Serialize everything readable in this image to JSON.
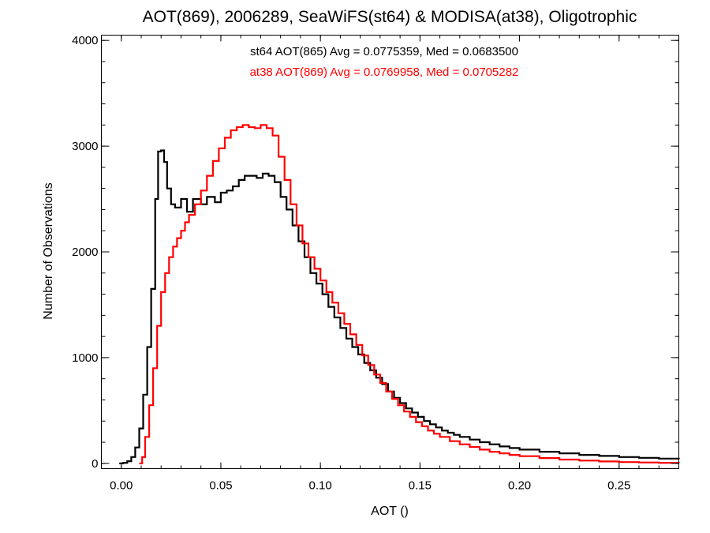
{
  "chart_data": {
    "type": "line",
    "title": "AOT(869), 2006289, SeaWiFS(st64) & MODISA(at38), Oligotrophic",
    "xlabel": "AOT ()",
    "ylabel": "Number of Observations",
    "xlim": [
      -0.01,
      0.28
    ],
    "ylim": [
      -50,
      4050
    ],
    "xticks": [
      {
        "value": 0.0,
        "label": "0.00"
      },
      {
        "value": 0.05,
        "label": "0.05"
      },
      {
        "value": 0.1,
        "label": "0.10"
      },
      {
        "value": 0.15,
        "label": "0.15"
      },
      {
        "value": 0.2,
        "label": "0.20"
      },
      {
        "value": 0.25,
        "label": "0.25"
      }
    ],
    "yticks": [
      {
        "value": 0,
        "label": "0"
      },
      {
        "value": 1000,
        "label": "1000"
      },
      {
        "value": 2000,
        "label": "2000"
      },
      {
        "value": 3000,
        "label": "3000"
      },
      {
        "value": 4000,
        "label": "4000"
      }
    ],
    "grid": false,
    "legend_position": "top-center",
    "series": [
      {
        "label": "st64 AOT(865) Avg = 0.0775359, Med = 0.0683500",
        "color": "#000000",
        "step": true,
        "points": [
          [
            -0.001,
            0
          ],
          [
            0.001,
            5
          ],
          [
            0.003,
            20
          ],
          [
            0.005,
            60
          ],
          [
            0.007,
            150
          ],
          [
            0.009,
            330
          ],
          [
            0.011,
            650
          ],
          [
            0.013,
            1100
          ],
          [
            0.015,
            1650
          ],
          [
            0.017,
            2500
          ],
          [
            0.0185,
            2950
          ],
          [
            0.02,
            2960
          ],
          [
            0.0215,
            2850
          ],
          [
            0.023,
            2600
          ],
          [
            0.025,
            2450
          ],
          [
            0.027,
            2420
          ],
          [
            0.03,
            2500
          ],
          [
            0.033,
            2380
          ],
          [
            0.036,
            2500
          ],
          [
            0.04,
            2450
          ],
          [
            0.043,
            2520
          ],
          [
            0.047,
            2470
          ],
          [
            0.05,
            2560
          ],
          [
            0.053,
            2580
          ],
          [
            0.056,
            2620
          ],
          [
            0.059,
            2680
          ],
          [
            0.062,
            2720
          ],
          [
            0.065,
            2720
          ],
          [
            0.068,
            2700
          ],
          [
            0.071,
            2740
          ],
          [
            0.074,
            2720
          ],
          [
            0.077,
            2660
          ],
          [
            0.08,
            2520
          ],
          [
            0.083,
            2400
          ],
          [
            0.086,
            2250
          ],
          [
            0.089,
            2100
          ],
          [
            0.092,
            1950
          ],
          [
            0.095,
            1800
          ],
          [
            0.098,
            1700
          ],
          [
            0.101,
            1600
          ],
          [
            0.104,
            1480
          ],
          [
            0.107,
            1380
          ],
          [
            0.11,
            1280
          ],
          [
            0.113,
            1180
          ],
          [
            0.116,
            1100
          ],
          [
            0.119,
            1030
          ],
          [
            0.122,
            950
          ],
          [
            0.125,
            880
          ],
          [
            0.128,
            810
          ],
          [
            0.131,
            750
          ],
          [
            0.134,
            680
          ],
          [
            0.137,
            620
          ],
          [
            0.14,
            570
          ],
          [
            0.143,
            520
          ],
          [
            0.146,
            480
          ],
          [
            0.149,
            440
          ],
          [
            0.152,
            400
          ],
          [
            0.155,
            370
          ],
          [
            0.158,
            340
          ],
          [
            0.161,
            310
          ],
          [
            0.164,
            290
          ],
          [
            0.167,
            270
          ],
          [
            0.17,
            250
          ],
          [
            0.175,
            225
          ],
          [
            0.18,
            200
          ],
          [
            0.185,
            180
          ],
          [
            0.19,
            160
          ],
          [
            0.195,
            145
          ],
          [
            0.2,
            130
          ],
          [
            0.21,
            110
          ],
          [
            0.22,
            95
          ],
          [
            0.23,
            80
          ],
          [
            0.24,
            70
          ],
          [
            0.25,
            60
          ],
          [
            0.26,
            52
          ],
          [
            0.27,
            45
          ],
          [
            0.28,
            40
          ]
        ]
      },
      {
        "label": "at38 AOT(869) Avg = 0.0769958, Med = 0.0705282",
        "color": "#ff0000",
        "step": true,
        "points": [
          [
            0.009,
            0
          ],
          [
            0.0105,
            60
          ],
          [
            0.012,
            250
          ],
          [
            0.014,
            550
          ],
          [
            0.016,
            900
          ],
          [
            0.018,
            1300
          ],
          [
            0.02,
            1620
          ],
          [
            0.022,
            1800
          ],
          [
            0.024,
            1950
          ],
          [
            0.026,
            2050
          ],
          [
            0.028,
            2130
          ],
          [
            0.03,
            2200
          ],
          [
            0.032,
            2280
          ],
          [
            0.034,
            2350
          ],
          [
            0.037,
            2450
          ],
          [
            0.04,
            2580
          ],
          [
            0.043,
            2720
          ],
          [
            0.046,
            2860
          ],
          [
            0.049,
            2980
          ],
          [
            0.052,
            3080
          ],
          [
            0.055,
            3150
          ],
          [
            0.058,
            3180
          ],
          [
            0.061,
            3200
          ],
          [
            0.064,
            3180
          ],
          [
            0.067,
            3170
          ],
          [
            0.07,
            3200
          ],
          [
            0.073,
            3170
          ],
          [
            0.076,
            3100
          ],
          [
            0.079,
            2900
          ],
          [
            0.082,
            2680
          ],
          [
            0.085,
            2450
          ],
          [
            0.088,
            2250
          ],
          [
            0.091,
            2080
          ],
          [
            0.094,
            1950
          ],
          [
            0.097,
            1840
          ],
          [
            0.1,
            1730
          ],
          [
            0.103,
            1620
          ],
          [
            0.106,
            1520
          ],
          [
            0.109,
            1420
          ],
          [
            0.112,
            1320
          ],
          [
            0.115,
            1220
          ],
          [
            0.118,
            1120
          ],
          [
            0.121,
            1020
          ],
          [
            0.124,
            930
          ],
          [
            0.127,
            840
          ],
          [
            0.13,
            760
          ],
          [
            0.133,
            680
          ],
          [
            0.136,
            610
          ],
          [
            0.139,
            550
          ],
          [
            0.142,
            490
          ],
          [
            0.145,
            440
          ],
          [
            0.148,
            390
          ],
          [
            0.151,
            350
          ],
          [
            0.154,
            310
          ],
          [
            0.157,
            280
          ],
          [
            0.16,
            250
          ],
          [
            0.165,
            210
          ],
          [
            0.17,
            180
          ],
          [
            0.175,
            155
          ],
          [
            0.18,
            130
          ],
          [
            0.185,
            110
          ],
          [
            0.19,
            95
          ],
          [
            0.195,
            80
          ],
          [
            0.2,
            68
          ],
          [
            0.21,
            50
          ],
          [
            0.22,
            36
          ],
          [
            0.23,
            26
          ],
          [
            0.24,
            18
          ],
          [
            0.25,
            12
          ],
          [
            0.26,
            8
          ],
          [
            0.27,
            5
          ],
          [
            0.28,
            3
          ]
        ]
      }
    ]
  }
}
